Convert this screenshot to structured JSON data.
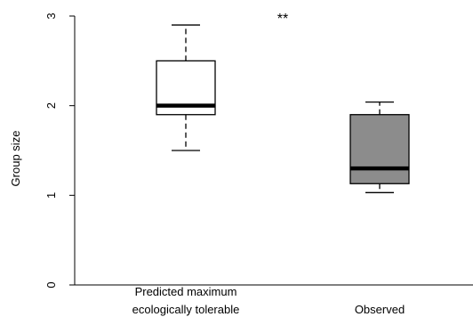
{
  "chart_data": {
    "type": "box",
    "title": "",
    "ylabel": "Group size",
    "xlabel": "",
    "ylim": [
      0,
      3
    ],
    "yticks": [
      "0",
      "1",
      "2",
      "3"
    ],
    "annotation": "**",
    "categories": [
      {
        "label_lines": [
          "Predicted maximum",
          "ecologically tolerable"
        ]
      },
      {
        "label_lines": [
          "Observed"
        ]
      }
    ],
    "boxes": [
      {
        "whisker_low": 1.5,
        "q1": 1.9,
        "median": 2.0,
        "q3": 2.5,
        "whisker_high": 2.9,
        "fill": "#ffffff"
      },
      {
        "whisker_low": 1.03,
        "q1": 1.13,
        "median": 1.3,
        "q3": 1.9,
        "whisker_high": 2.04,
        "fill": "#8c8c8c"
      }
    ]
  }
}
